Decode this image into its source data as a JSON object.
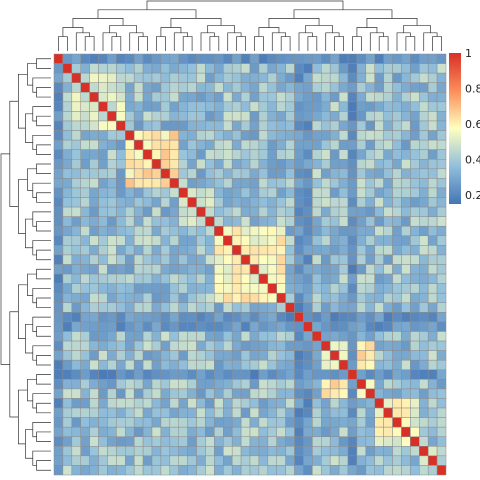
{
  "chart_data": {
    "type": "heatmap",
    "title": "",
    "xlabel": "",
    "ylabel": "",
    "rows": 44,
    "cols": 44,
    "value_range": [
      0.15,
      1.0
    ],
    "diagonal_value": 1.0,
    "row_dendrogram": true,
    "col_dendrogram": true,
    "colorbar": {
      "ticks": [
        {
          "value": 1.0,
          "label": "1"
        },
        {
          "value": 0.8,
          "label": "0.8"
        },
        {
          "value": 0.6,
          "label": "0.6"
        },
        {
          "value": 0.4,
          "label": "0.4"
        },
        {
          "value": 0.2,
          "label": "0.2"
        }
      ]
    },
    "colors": {
      "low": "#4575b4",
      "mid_low": "#91bfdb",
      "mid": "#ffffbf",
      "mid_high": "#fc8d59",
      "high": "#d73027",
      "cell_border": "#8c8c8c"
    },
    "clusters": [
      {
        "start": 0,
        "end": 2,
        "within": 0.42
      },
      {
        "start": 2,
        "end": 8,
        "within": 0.5
      },
      {
        "start": 8,
        "end": 14,
        "within": 0.62
      },
      {
        "start": 14,
        "end": 18,
        "within": 0.46
      },
      {
        "start": 18,
        "end": 26,
        "within": 0.58
      },
      {
        "start": 26,
        "end": 30,
        "within": 0.48
      },
      {
        "start": 30,
        "end": 36,
        "within": 0.6
      },
      {
        "start": 36,
        "end": 41,
        "within": 0.55
      },
      {
        "start": 41,
        "end": 44,
        "within": 0.45
      }
    ],
    "low_rows": [
      0,
      27,
      28,
      33
    ],
    "between_cluster_range": [
      0.25,
      0.48
    ],
    "low_row_range": [
      0.17,
      0.3
    ]
  }
}
